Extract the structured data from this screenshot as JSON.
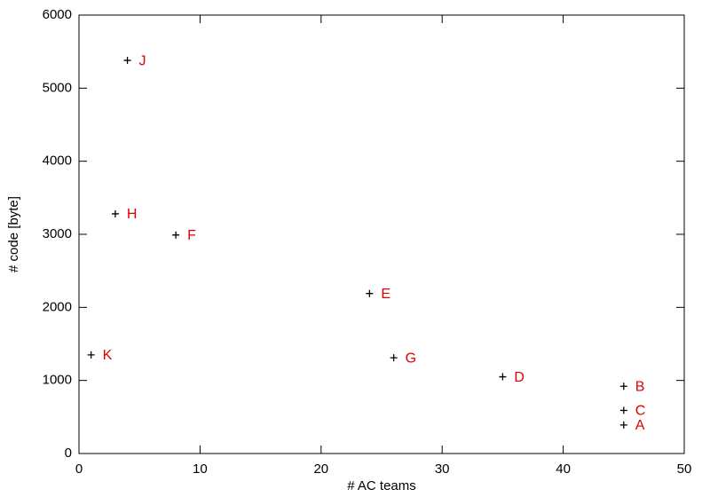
{
  "chart_data": {
    "type": "scatter",
    "x_label": "# AC teams",
    "y_label": "# code [byte]",
    "x": [
      4,
      3,
      8,
      24,
      1,
      26,
      35,
      45,
      45,
      45
    ],
    "values": [
      5380,
      3280,
      2990,
      2190,
      1350,
      1310,
      1050,
      920,
      590,
      390
    ],
    "point_labels": [
      "J",
      "H",
      "F",
      "E",
      "K",
      "G",
      "D",
      "B",
      "C",
      "A"
    ],
    "color": "#000000",
    "label_color": "#e00000",
    "xlim": [
      0,
      50
    ],
    "xticks": [
      0,
      10,
      20,
      30,
      40,
      50
    ],
    "ylim": [
      0,
      6000
    ],
    "yticks": [
      0,
      1000,
      2000,
      3000,
      4000,
      5000,
      6000
    ]
  }
}
